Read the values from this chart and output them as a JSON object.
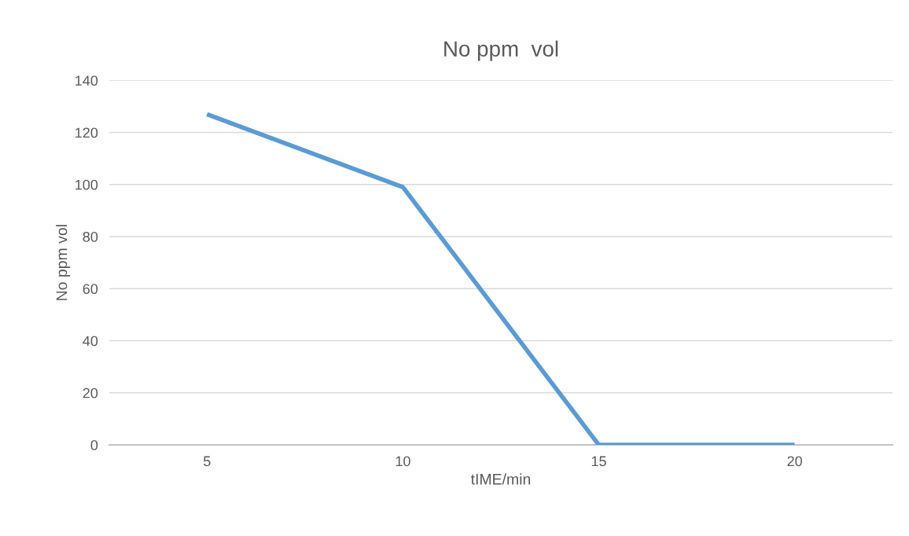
{
  "chart_data": {
    "type": "line",
    "title": "No ppm  vol",
    "xlabel": "tIME/min",
    "ylabel": "No ppm vol",
    "categories": [
      "5",
      "10",
      "15",
      "20"
    ],
    "series": [
      {
        "color": "#5b9bd5",
        "values": [
          127,
          99,
          0,
          0
        ]
      }
    ],
    "ylim": [
      0,
      140
    ],
    "yticks": [
      0,
      20,
      40,
      60,
      80,
      100,
      120,
      140
    ],
    "grid": "y",
    "marker": "none",
    "line_style": "solid"
  }
}
